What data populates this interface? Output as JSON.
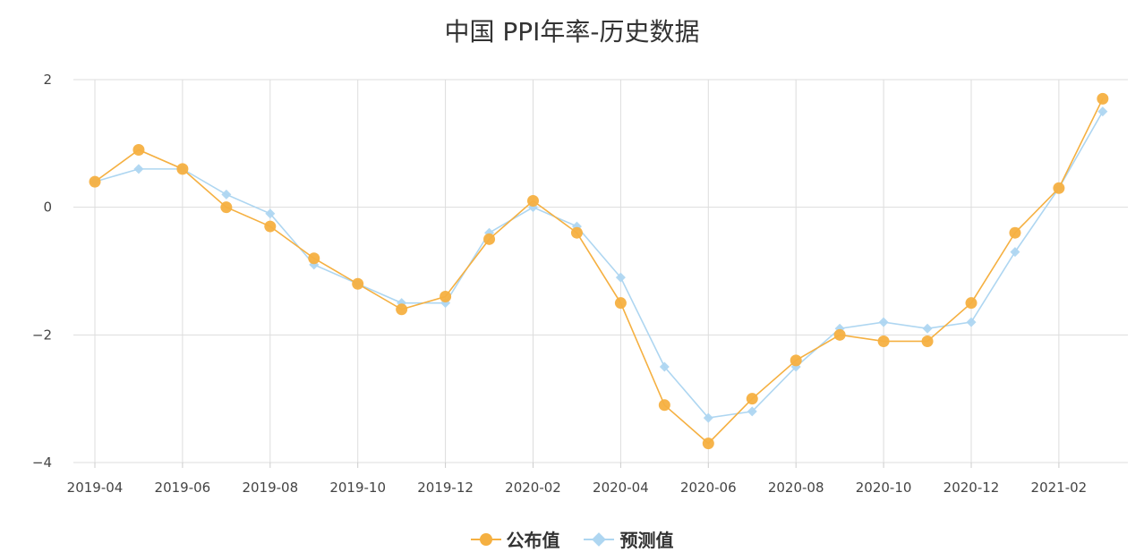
{
  "chart_data": {
    "type": "line",
    "title": "中国 PPI年率-历史数据",
    "xlabel": "",
    "ylabel": "",
    "x": [
      "2019-04",
      "2019-05",
      "2019-06",
      "2019-07",
      "2019-08",
      "2019-09",
      "2019-10",
      "2019-11",
      "2019-12",
      "2020-01",
      "2020-02",
      "2020-03",
      "2020-04",
      "2020-05",
      "2020-06",
      "2020-07",
      "2020-08",
      "2020-09",
      "2020-10",
      "2020-11",
      "2020-12",
      "2021-01",
      "2021-02",
      "2021-03"
    ],
    "x_tick_labels": [
      "2019-04",
      "2019-06",
      "2019-08",
      "2019-10",
      "2019-12",
      "2020-02",
      "2020-04",
      "2020-06",
      "2020-08",
      "2020-10",
      "2020-12",
      "2021-02"
    ],
    "y_tick_labels": [
      "2",
      "0",
      "−2",
      "−4"
    ],
    "ylim": [
      -4,
      2
    ],
    "grid": true,
    "legend_position": "bottom-center",
    "series": [
      {
        "name": "公布值",
        "color": "#F5B041",
        "marker": "circle",
        "values": [
          0.4,
          0.9,
          0.6,
          0.0,
          -0.3,
          -0.8,
          -1.2,
          -1.6,
          -1.4,
          -0.5,
          0.1,
          -0.4,
          -1.5,
          -3.1,
          -3.7,
          -3.0,
          -2.4,
          -2.0,
          -2.1,
          -2.1,
          -1.5,
          -0.4,
          0.3,
          1.7
        ]
      },
      {
        "name": "预测值",
        "color": "#AED6F1",
        "marker": "diamond",
        "values": [
          0.4,
          0.6,
          0.6,
          0.2,
          -0.1,
          -0.9,
          -1.2,
          -1.5,
          -1.5,
          -0.4,
          0.0,
          -0.3,
          -1.1,
          -2.5,
          -3.3,
          -3.2,
          -2.5,
          -1.9,
          -1.8,
          -1.9,
          -1.8,
          -0.7,
          0.3,
          1.5
        ]
      }
    ]
  }
}
